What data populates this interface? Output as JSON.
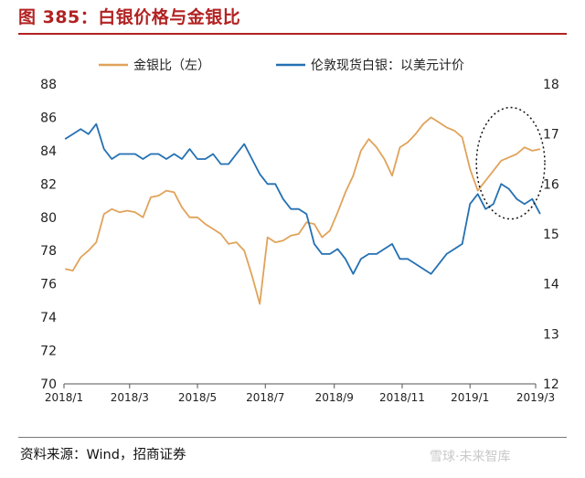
{
  "header": {
    "title": "图 385：白银价格与金银比"
  },
  "footer": {
    "source": "资料来源：Wind，招商证券",
    "watermark": "雪球·未来智库"
  },
  "colors": {
    "ratio": "#e0a35a",
    "silver": "#2470b3",
    "accent": "#b22222"
  },
  "chart_data": {
    "type": "line",
    "title": "",
    "legend_position": "top",
    "grid": false,
    "x_ticks": [
      "2018/1",
      "2018/3",
      "2018/5",
      "2018/7",
      "2018/9",
      "2018/11",
      "2019/1",
      "2019/3"
    ],
    "xlim": [
      "2018/1",
      "2019/3"
    ],
    "y_left": {
      "ylim": [
        70,
        88
      ],
      "ticks": [
        70,
        72,
        74,
        76,
        78,
        80,
        82,
        84,
        86,
        88
      ]
    },
    "y_right": {
      "ylim": [
        12,
        18
      ],
      "ticks": [
        12,
        13,
        14,
        15,
        16,
        17,
        18
      ]
    },
    "annotation": "dotted ellipse highlighting 2019/1–2019/3 segment",
    "x": [
      "2018/1/2",
      "2018/1/9",
      "2018/1/16",
      "2018/1/23",
      "2018/1/30",
      "2018/2/6",
      "2018/2/13",
      "2018/2/20",
      "2018/2/27",
      "2018/3/6",
      "2018/3/13",
      "2018/3/20",
      "2018/3/27",
      "2018/4/3",
      "2018/4/10",
      "2018/4/17",
      "2018/4/24",
      "2018/5/1",
      "2018/5/8",
      "2018/5/15",
      "2018/5/22",
      "2018/5/29",
      "2018/6/5",
      "2018/6/12",
      "2018/6/19",
      "2018/6/26",
      "2018/7/3",
      "2018/7/10",
      "2018/7/17",
      "2018/7/24",
      "2018/7/31",
      "2018/8/7",
      "2018/8/14",
      "2018/8/21",
      "2018/8/28",
      "2018/9/4",
      "2018/9/11",
      "2018/9/18",
      "2018/9/25",
      "2018/10/2",
      "2018/10/9",
      "2018/10/16",
      "2018/10/23",
      "2018/10/30",
      "2018/11/6",
      "2018/11/13",
      "2018/11/20",
      "2018/11/27",
      "2018/12/4",
      "2018/12/11",
      "2018/12/18",
      "2018/12/25",
      "2019/1/1",
      "2019/1/8",
      "2019/1/15",
      "2019/1/22",
      "2019/1/29",
      "2019/2/5",
      "2019/2/12",
      "2019/2/19",
      "2019/2/26",
      "2019/3/5"
    ],
    "series": [
      {
        "name": "金银比（左）",
        "axis": "left",
        "values": [
          76.9,
          76.8,
          77.6,
          78.0,
          78.5,
          80.2,
          80.5,
          80.3,
          80.4,
          80.3,
          80.0,
          81.2,
          81.3,
          81.6,
          81.5,
          80.6,
          80.0,
          80.0,
          79.6,
          79.3,
          79.0,
          78.4,
          78.5,
          78.0,
          76.5,
          74.8,
          78.8,
          78.5,
          78.6,
          78.9,
          79.0,
          79.7,
          79.6,
          78.8,
          79.2,
          80.3,
          81.5,
          82.5,
          84.0,
          84.7,
          84.2,
          83.5,
          82.5,
          84.2,
          84.5,
          85.0,
          85.6,
          86.0,
          85.7,
          85.4,
          85.2,
          84.8,
          82.9,
          81.6,
          82.2,
          82.8,
          83.4,
          83.6,
          83.8,
          84.2,
          84.0,
          84.1
        ]
      },
      {
        "name": "伦敦现货白银：以美元计价",
        "axis": "right",
        "values": [
          16.9,
          17.0,
          17.1,
          17.0,
          17.2,
          16.7,
          16.5,
          16.6,
          16.6,
          16.6,
          16.5,
          16.6,
          16.6,
          16.5,
          16.6,
          16.5,
          16.7,
          16.5,
          16.5,
          16.6,
          16.4,
          16.4,
          16.6,
          16.8,
          16.5,
          16.2,
          16.0,
          16.0,
          15.7,
          15.5,
          15.5,
          15.4,
          14.8,
          14.6,
          14.6,
          14.7,
          14.5,
          14.2,
          14.5,
          14.6,
          14.6,
          14.7,
          14.8,
          14.5,
          14.5,
          14.4,
          14.3,
          14.2,
          14.4,
          14.6,
          14.7,
          14.8,
          15.6,
          15.8,
          15.5,
          15.6,
          16.0,
          15.9,
          15.7,
          15.6,
          15.7,
          15.4
        ]
      }
    ]
  }
}
